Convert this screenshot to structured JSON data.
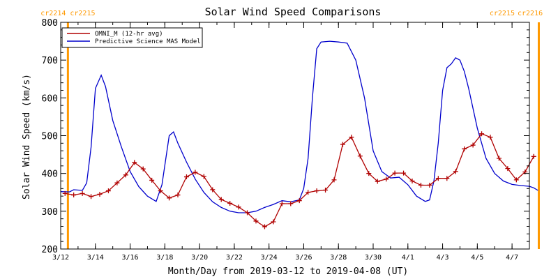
{
  "chart_data": {
    "type": "line",
    "title": "Solar Wind Speed Comparisons",
    "xlabel": "Month/Day from 2019-03-12 to 2019-04-08 (UT)",
    "ylabel": "Solar Wind Speed (km/s)",
    "xlim": [
      "2019-03-12",
      "2019-04-08"
    ],
    "ylim": [
      200,
      800
    ],
    "x_tick_labels": [
      {
        "date": "2019-03-12",
        "label": "3/12"
      },
      {
        "date": "2019-03-14",
        "label": "3/14"
      },
      {
        "date": "2019-03-16",
        "label": "3/16"
      },
      {
        "date": "2019-03-18",
        "label": "3/18"
      },
      {
        "date": "2019-03-20",
        "label": "3/20"
      },
      {
        "date": "2019-03-22",
        "label": "3/22"
      },
      {
        "date": "2019-03-24",
        "label": "3/24"
      },
      {
        "date": "2019-03-26",
        "label": "3/26"
      },
      {
        "date": "2019-03-28",
        "label": "3/28"
      },
      {
        "date": "2019-03-30",
        "label": "3/30"
      },
      {
        "date": "2019-04-01",
        "label": "4/1"
      },
      {
        "date": "2019-04-03",
        "label": "4/3"
      },
      {
        "date": "2019-04-05",
        "label": "4/5"
      },
      {
        "date": "2019-04-07",
        "label": "4/7"
      }
    ],
    "y_ticks": [
      200,
      300,
      400,
      500,
      600,
      700,
      800
    ],
    "carrington_markers": [
      {
        "date": "2019-03-12 10:00",
        "left_label": "cr2214",
        "right_label": "cr2215",
        "color": "#ff9900"
      },
      {
        "date": "2019-04-08 13:00",
        "left_label": "cr2215",
        "right_label": "cr2216",
        "color": "#ff9900"
      }
    ],
    "legend": "top-left",
    "series": [
      {
        "name": "OMNI_M (12-hr avg)",
        "color": "#b00000",
        "marker": "plus",
        "x": [
          "2019-03-12 06:00",
          "2019-03-12 18:00",
          "2019-03-13 06:00",
          "2019-03-13 18:00",
          "2019-03-14 06:00",
          "2019-03-14 18:00",
          "2019-03-15 06:00",
          "2019-03-15 18:00",
          "2019-03-16 06:00",
          "2019-03-16 18:00",
          "2019-03-17 06:00",
          "2019-03-17 18:00",
          "2019-03-18 06:00",
          "2019-03-18 18:00",
          "2019-03-19 06:00",
          "2019-03-19 18:00",
          "2019-03-20 06:00",
          "2019-03-20 18:00",
          "2019-03-21 06:00",
          "2019-03-21 18:00",
          "2019-03-22 06:00",
          "2019-03-22 18:00",
          "2019-03-23 06:00",
          "2019-03-23 18:00",
          "2019-03-24 06:00",
          "2019-03-24 18:00",
          "2019-03-25 06:00",
          "2019-03-25 18:00",
          "2019-03-26 06:00",
          "2019-03-26 18:00",
          "2019-03-27 06:00",
          "2019-03-27 18:00",
          "2019-03-28 06:00",
          "2019-03-28 18:00",
          "2019-03-29 06:00",
          "2019-03-29 18:00",
          "2019-03-30 06:00",
          "2019-03-30 18:00",
          "2019-03-31 06:00",
          "2019-03-31 18:00",
          "2019-04-01 06:00",
          "2019-04-01 18:00",
          "2019-04-02 06:00",
          "2019-04-02 18:00",
          "2019-04-03 06:00",
          "2019-04-03 18:00",
          "2019-04-04 06:00",
          "2019-04-04 18:00",
          "2019-04-05 06:00",
          "2019-04-05 18:00",
          "2019-04-06 06:00",
          "2019-04-06 18:00",
          "2019-04-07 06:00",
          "2019-04-07 18:00",
          "2019-04-08 06:00"
        ],
        "y": [
          347,
          343,
          347,
          339,
          345,
          354,
          375,
          396,
          429,
          412,
          382,
          354,
          335,
          343,
          391,
          403,
          392,
          357,
          331,
          321,
          311,
          296,
          274,
          259,
          272,
          320,
          320,
          328,
          350,
          354,
          356,
          383,
          477,
          496,
          446,
          400,
          379,
          385,
          401,
          401,
          380,
          369,
          369,
          387,
          387,
          405,
          465,
          475,
          505,
          496,
          440,
          413,
          383,
          404,
          445
        ]
      },
      {
        "name": "Predictive Science MAS Model",
        "color": "#0000cc",
        "marker": "none",
        "x": [
          "2019-03-12 00:00",
          "2019-03-12 12:00",
          "2019-03-12 18:00",
          "2019-03-13 06:00",
          "2019-03-13 12:00",
          "2019-03-13 18:00",
          "2019-03-14 00:00",
          "2019-03-14 08:00",
          "2019-03-14 14:00",
          "2019-03-15 00:00",
          "2019-03-15 12:00",
          "2019-03-16 00:00",
          "2019-03-16 12:00",
          "2019-03-17 00:00",
          "2019-03-17 12:00",
          "2019-03-17 20:00",
          "2019-03-18 06:00",
          "2019-03-18 12:00",
          "2019-03-18 18:00",
          "2019-03-19 06:00",
          "2019-03-19 18:00",
          "2019-03-20 06:00",
          "2019-03-20 18:00",
          "2019-03-21 06:00",
          "2019-03-21 18:00",
          "2019-03-22 06:00",
          "2019-03-22 18:00",
          "2019-03-23 06:00",
          "2019-03-23 18:00",
          "2019-03-24 06:00",
          "2019-03-24 18:00",
          "2019-03-25 06:00",
          "2019-03-25 18:00",
          "2019-03-26 00:00",
          "2019-03-26 06:00",
          "2019-03-26 12:00",
          "2019-03-26 18:00",
          "2019-03-27 00:00",
          "2019-03-27 12:00",
          "2019-03-28 00:00",
          "2019-03-28 12:00",
          "2019-03-29 00:00",
          "2019-03-29 12:00",
          "2019-03-30 00:00",
          "2019-03-30 12:00",
          "2019-03-31 00:00",
          "2019-03-31 12:00",
          "2019-04-01 00:00",
          "2019-04-01 12:00",
          "2019-04-02 00:00",
          "2019-04-02 06:00",
          "2019-04-02 12:00",
          "2019-04-02 18:00",
          "2019-04-03 00:00",
          "2019-04-03 06:00",
          "2019-04-03 12:00",
          "2019-04-03 18:00",
          "2019-04-04 00:00",
          "2019-04-04 06:00",
          "2019-04-04 12:00",
          "2019-04-05 00:00",
          "2019-04-05 12:00",
          "2019-04-06 00:00",
          "2019-04-06 12:00",
          "2019-04-07 00:00",
          "2019-04-07 12:00",
          "2019-04-08 00:00",
          "2019-04-08 06:00",
          "2019-04-08 12:00"
        ],
        "y": [
          352,
          351,
          357,
          355,
          375,
          470,
          625,
          660,
          630,
          540,
          470,
          405,
          365,
          340,
          326,
          370,
          500,
          510,
          480,
          430,
          385,
          350,
          325,
          310,
          300,
          296,
          296,
          300,
          310,
          318,
          328,
          325,
          330,
          360,
          440,
          600,
          730,
          748,
          750,
          748,
          745,
          700,
          600,
          460,
          405,
          388,
          390,
          370,
          340,
          326,
          330,
          380,
          480,
          620,
          680,
          690,
          706,
          700,
          670,
          625,
          520,
          440,
          400,
          380,
          371,
          368,
          366,
          362,
          355
        ]
      }
    ]
  }
}
